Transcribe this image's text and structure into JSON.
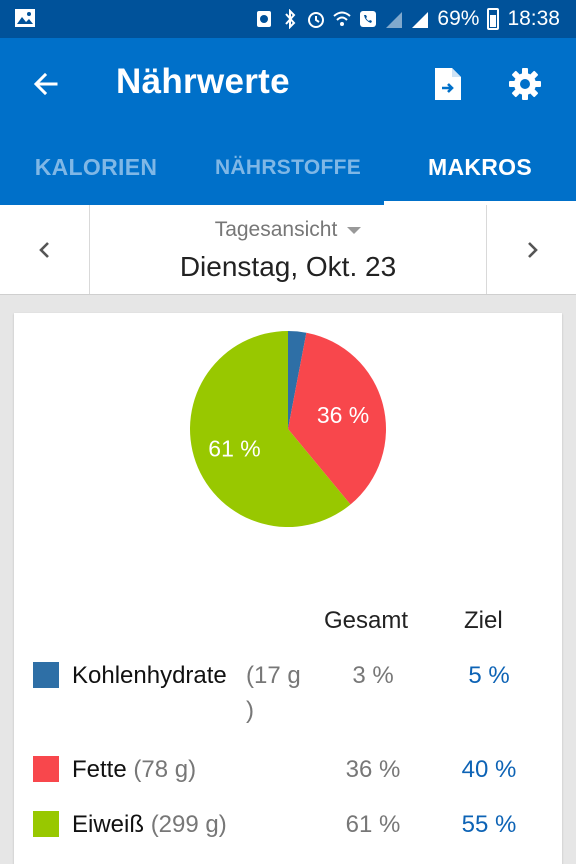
{
  "status_bar": {
    "battery": "69%",
    "time": "18:38"
  },
  "app_bar": {
    "title": "Nährwerte"
  },
  "tabs": [
    {
      "label": "KALORIEN",
      "active": false
    },
    {
      "label": "NÄHRSTOFFE",
      "active": false
    },
    {
      "label": "MAKROS",
      "active": true
    }
  ],
  "date_nav": {
    "view": "Tagesansicht",
    "date": "Dienstag, Okt. 23"
  },
  "table": {
    "col_total": "Gesamt",
    "col_goal": "Ziel",
    "rows": [
      {
        "name": "Kohlenhydrate",
        "amount": "(17 g",
        "amount_end": ")",
        "total": "3 %",
        "goal": "5 %",
        "color": "#2e6fa6"
      },
      {
        "name": "Fette",
        "amount": "(78 g)",
        "total": "36 %",
        "goal": "40 %",
        "color": "#f8474c"
      },
      {
        "name": "Eiweiß",
        "amount": "(299 g)",
        "total": "61 %",
        "goal": "55 %",
        "color": "#98c800"
      }
    ]
  },
  "chart_data": {
    "type": "pie",
    "categories": [
      "Kohlenhydrate",
      "Fette",
      "Eiweiß"
    ],
    "values": [
      3,
      36,
      61
    ],
    "data_labels": [
      "",
      "36 %",
      "61 %"
    ],
    "colors": [
      "#2e6fa6",
      "#f8474c",
      "#98c800"
    ]
  }
}
